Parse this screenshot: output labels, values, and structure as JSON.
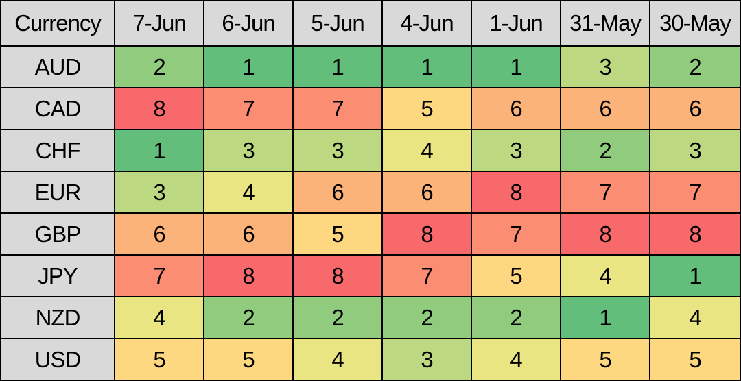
{
  "table": {
    "header": [
      "Currency",
      "7-Jun",
      "6-Jun",
      "5-Jun",
      "4-Jun",
      "1-Jun",
      "31-May",
      "30-May"
    ],
    "rows": [
      [
        "AUD",
        2,
        1,
        1,
        1,
        1,
        3,
        2
      ],
      [
        "CAD",
        8,
        7,
        7,
        5,
        6,
        6,
        6
      ],
      [
        "CHF",
        1,
        3,
        3,
        4,
        3,
        2,
        3
      ],
      [
        "EUR",
        3,
        4,
        6,
        6,
        8,
        7,
        7
      ],
      [
        "GBP",
        6,
        6,
        5,
        8,
        7,
        8,
        8
      ],
      [
        "JPY",
        7,
        8,
        8,
        7,
        5,
        4,
        1
      ],
      [
        "NZD",
        4,
        2,
        2,
        2,
        2,
        1,
        4
      ],
      [
        "USD",
        5,
        5,
        4,
        3,
        4,
        5,
        5
      ]
    ],
    "colors": [
      "#63be7b",
      "#90cb7e",
      "#bcd880",
      "#e9e583",
      "#fed880",
      "#fcb379",
      "#fb8e72",
      "#f8696b"
    ],
    "label_background": "#d9d9d9"
  }
}
